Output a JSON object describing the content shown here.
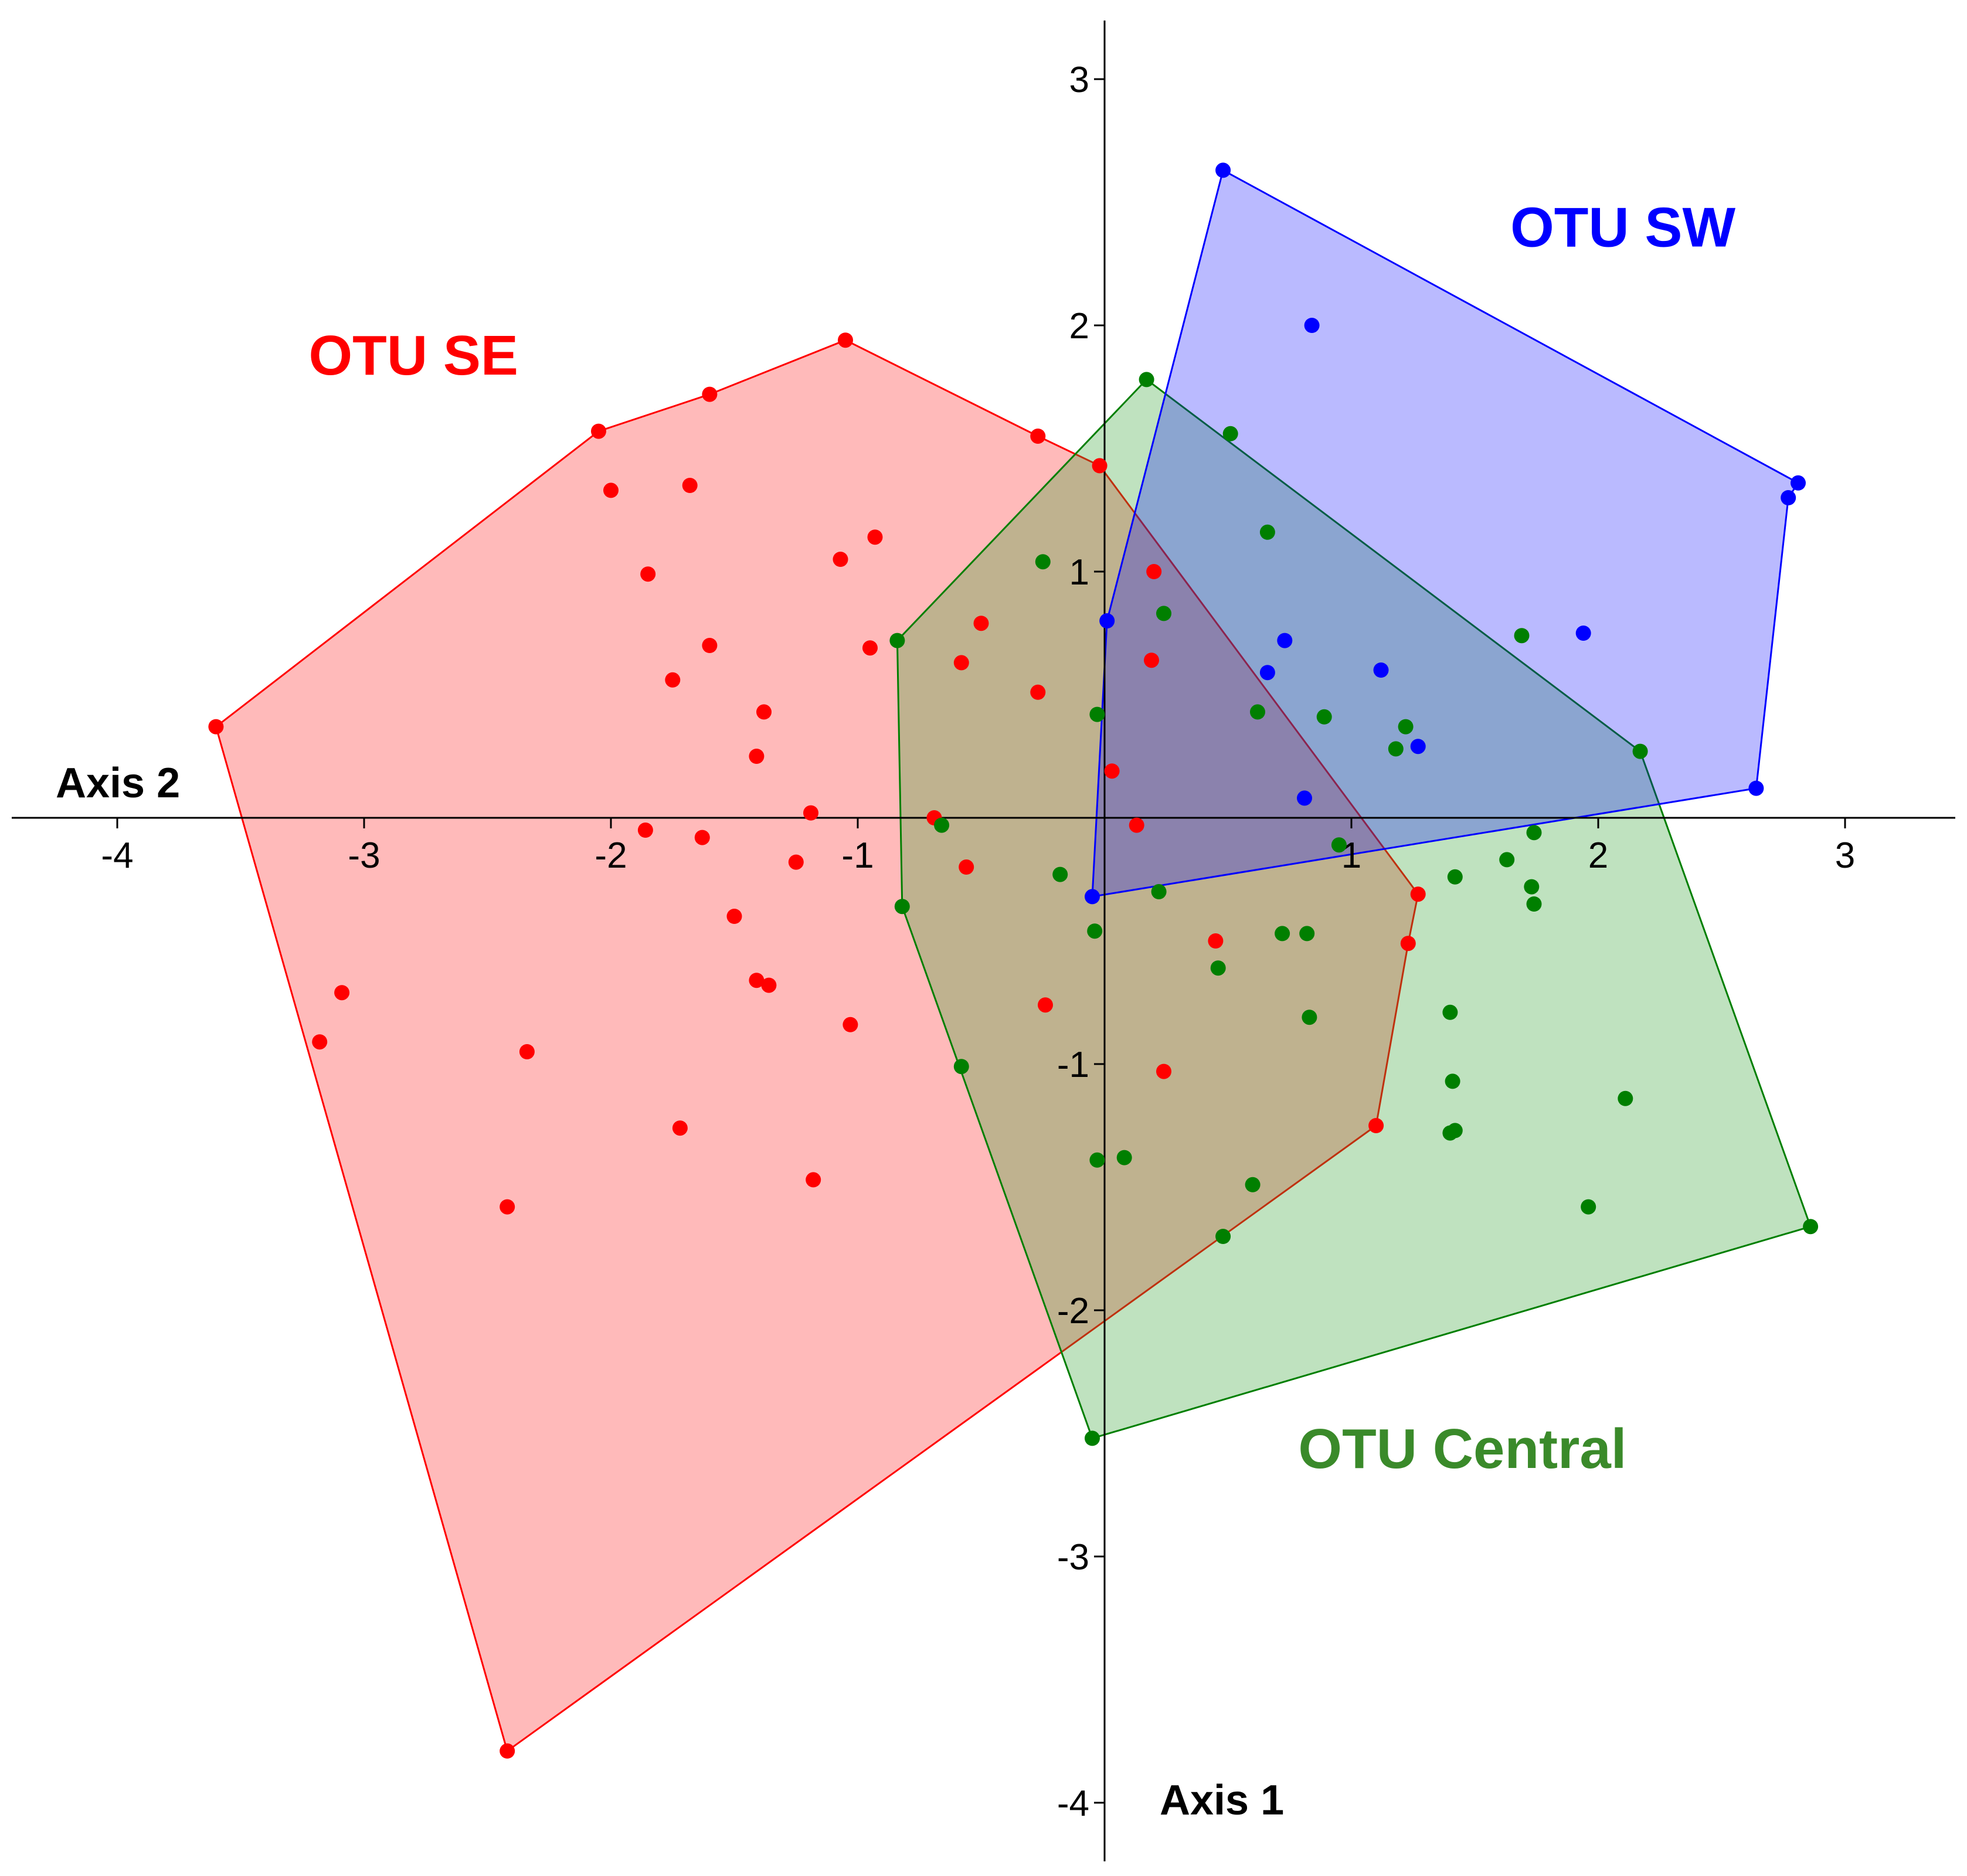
{
  "chart_data": {
    "type": "scatter",
    "title": "",
    "xlabel": "Axis 2",
    "ylabel": "Axis 1",
    "xlim": [
      -4.4,
      3.5
    ],
    "ylim": [
      -4.25,
      3.25
    ],
    "xticks": [
      -4,
      -3,
      -2,
      -1,
      1,
      2,
      3
    ],
    "yticks": [
      3,
      2,
      1,
      -1,
      -2,
      -3,
      -4
    ],
    "xtick_labels": [
      "-4",
      "-3",
      "-2",
      "-1",
      "1",
      "2",
      "3"
    ],
    "ytick_labels": [
      "3",
      "2",
      "1",
      "-1",
      "-2",
      "-3",
      "-4"
    ],
    "grid": false,
    "legend": "none",
    "series": [
      {
        "name": "OTU SE",
        "color": "#ff0000",
        "fill": "#ff0000",
        "fill_opacity": 0.27,
        "hull": [
          [
            -3.6,
            0.37
          ],
          [
            -2.05,
            1.57
          ],
          [
            -1.6,
            1.72
          ],
          [
            -1.05,
            1.94
          ],
          [
            -0.27,
            1.55
          ],
          [
            -0.02,
            1.43
          ],
          [
            1.27,
            -0.31
          ],
          [
            1.23,
            -0.51
          ],
          [
            1.1,
            -1.25
          ],
          [
            -2.42,
            -3.79
          ]
        ],
        "points": [
          [
            -3.6,
            0.37
          ],
          [
            -2.05,
            1.57
          ],
          [
            -1.6,
            1.72
          ],
          [
            -1.05,
            1.94
          ],
          [
            -0.27,
            1.55
          ],
          [
            -0.02,
            1.43
          ],
          [
            1.27,
            -0.31
          ],
          [
            1.23,
            -0.51
          ],
          [
            1.1,
            -1.25
          ],
          [
            -2.42,
            -3.79
          ],
          [
            -2.0,
            1.33
          ],
          [
            -1.68,
            1.35
          ],
          [
            -1.85,
            0.99
          ],
          [
            -1.07,
            1.05
          ],
          [
            -0.93,
            1.14
          ],
          [
            -1.6,
            0.7
          ],
          [
            -1.75,
            0.56
          ],
          [
            -0.95,
            0.69
          ],
          [
            -0.5,
            0.79
          ],
          [
            -0.58,
            0.63
          ],
          [
            -0.27,
            0.51
          ],
          [
            -1.38,
            0.43
          ],
          [
            -1.41,
            0.25
          ],
          [
            0.2,
            1.0
          ],
          [
            0.19,
            0.64
          ],
          [
            0.03,
            0.19
          ],
          [
            -1.19,
            0.02
          ],
          [
            -1.86,
            -0.05
          ],
          [
            -1.63,
            -0.08
          ],
          [
            -1.25,
            -0.18
          ],
          [
            -0.69,
            0.0
          ],
          [
            -0.56,
            -0.2
          ],
          [
            0.13,
            -0.03
          ],
          [
            -1.5,
            -0.4
          ],
          [
            -1.41,
            -0.66
          ],
          [
            -1.36,
            -0.68
          ],
          [
            -1.03,
            -0.84
          ],
          [
            -3.09,
            -0.71
          ],
          [
            -3.18,
            -0.91
          ],
          [
            -2.34,
            -0.95
          ],
          [
            -0.24,
            -0.76
          ],
          [
            0.45,
            -0.5
          ],
          [
            0.24,
            -1.03
          ],
          [
            -1.72,
            -1.26
          ],
          [
            -1.18,
            -1.47
          ],
          [
            -2.42,
            -1.58
          ]
        ]
      },
      {
        "name": "OTU Central",
        "color": "#007f00",
        "fill": "#2ca02c",
        "fill_opacity": 0.3,
        "hull": [
          [
            0.17,
            1.78
          ],
          [
            2.17,
            0.27
          ],
          [
            2.86,
            -1.66
          ],
          [
            -0.05,
            -2.52
          ],
          [
            -0.82,
            -0.36
          ],
          [
            -0.84,
            0.72
          ]
        ],
        "points": [
          [
            0.17,
            1.78
          ],
          [
            2.17,
            0.27
          ],
          [
            2.86,
            -1.66
          ],
          [
            -0.05,
            -2.52
          ],
          [
            -0.82,
            -0.36
          ],
          [
            -0.84,
            0.72
          ],
          [
            0.51,
            1.56
          ],
          [
            0.66,
            1.16
          ],
          [
            -0.25,
            1.04
          ],
          [
            0.24,
            0.83
          ],
          [
            1.69,
            0.74
          ],
          [
            -0.03,
            0.42
          ],
          [
            0.62,
            0.43
          ],
          [
            0.89,
            0.41
          ],
          [
            1.22,
            0.37
          ],
          [
            1.18,
            0.28
          ],
          [
            -0.66,
            -0.03
          ],
          [
            1.74,
            -0.06
          ],
          [
            0.95,
            -0.11
          ],
          [
            1.63,
            -0.17
          ],
          [
            -0.18,
            -0.23
          ],
          [
            0.22,
            -0.3
          ],
          [
            1.42,
            -0.24
          ],
          [
            1.73,
            -0.28
          ],
          [
            1.74,
            -0.35
          ],
          [
            -0.04,
            -0.46
          ],
          [
            0.72,
            -0.47
          ],
          [
            0.82,
            -0.47
          ],
          [
            0.46,
            -0.61
          ],
          [
            1.4,
            -0.79
          ],
          [
            0.83,
            -0.81
          ],
          [
            -0.58,
            -1.01
          ],
          [
            1.41,
            -1.07
          ],
          [
            2.11,
            -1.14
          ],
          [
            1.42,
            -1.27
          ],
          [
            1.4,
            -1.28
          ],
          [
            -0.03,
            -1.39
          ],
          [
            0.08,
            -1.38
          ],
          [
            0.6,
            -1.49
          ],
          [
            1.96,
            -1.58
          ],
          [
            0.48,
            -1.7
          ]
        ]
      },
      {
        "name": "OTU SW",
        "color": "#0000ff",
        "fill": "#0000ff",
        "fill_opacity": 0.27,
        "hull": [
          [
            0.48,
            2.63
          ],
          [
            2.81,
            1.36
          ],
          [
            2.77,
            1.3
          ],
          [
            2.64,
            0.12
          ],
          [
            -0.05,
            -0.32
          ],
          [
            0.01,
            0.8
          ]
        ],
        "points": [
          [
            0.48,
            2.63
          ],
          [
            2.81,
            1.36
          ],
          [
            2.77,
            1.3
          ],
          [
            2.64,
            0.12
          ],
          [
            -0.05,
            -0.32
          ],
          [
            0.01,
            0.8
          ],
          [
            0.84,
            2.0
          ],
          [
            1.94,
            0.75
          ],
          [
            0.73,
            0.72
          ],
          [
            1.12,
            0.6
          ],
          [
            0.66,
            0.59
          ],
          [
            1.27,
            0.29
          ],
          [
            0.81,
            0.08
          ]
        ]
      }
    ],
    "annotations": [
      {
        "text": "OTU SE",
        "color": "#ff0000",
        "x": -2.8,
        "y": 1.8
      },
      {
        "text": "OTU SW",
        "color": "#0000ff",
        "x": 2.1,
        "y": 2.32
      },
      {
        "text": "OTU Central",
        "color": "#3a8a2a",
        "x": 1.45,
        "y": -2.64
      }
    ]
  }
}
